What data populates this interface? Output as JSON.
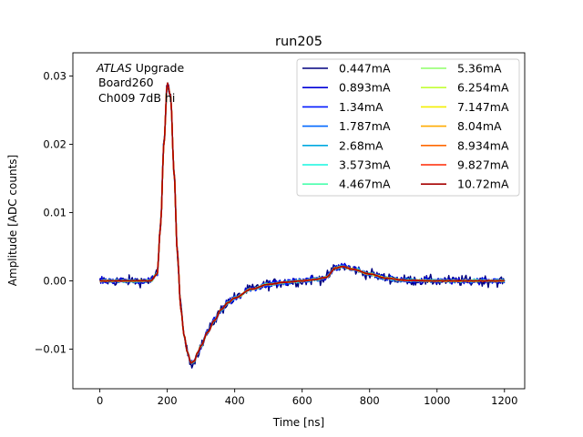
{
  "chart_data": {
    "type": "line",
    "title": "run205",
    "xlabel": "Time [ns]",
    "ylabel": "Amplitude [ADC counts]",
    "xlim": [
      -80,
      1260
    ],
    "ylim": [
      -0.0158,
      0.0334
    ],
    "x_ticks": [
      0,
      200,
      400,
      600,
      800,
      1000,
      1200
    ],
    "y_ticks": [
      -0.01,
      0.0,
      0.01,
      0.02,
      0.03
    ],
    "x_tick_labels": [
      "0",
      "200",
      "400",
      "600",
      "800",
      "1000",
      "1200"
    ],
    "y_tick_labels": [
      "−0.01",
      "0.00",
      "0.01",
      "0.02",
      "0.03"
    ],
    "grid": false,
    "legend_placement": "top-right",
    "legend_columns": 2,
    "annotation": {
      "italic_part": "ATLAS",
      "line1_rest": " Upgrade",
      "line2": "Board260",
      "line3": "Ch009 7dB hi"
    },
    "pulse_shape": {
      "x": [
        0,
        150,
        170,
        180,
        190,
        200,
        210,
        220,
        230,
        240,
        250,
        260,
        270,
        280,
        290,
        300,
        320,
        340,
        360,
        380,
        400,
        450,
        500,
        550,
        600,
        640,
        670,
        700,
        720,
        750,
        800,
        850,
        900,
        1000,
        1100,
        1200
      ],
      "y": [
        0.0,
        0.0,
        0.001,
        0.008,
        0.02,
        0.029,
        0.027,
        0.016,
        0.004,
        -0.004,
        -0.008,
        -0.0105,
        -0.012,
        -0.0118,
        -0.0105,
        -0.0095,
        -0.0075,
        -0.0058,
        -0.0042,
        -0.0032,
        -0.0025,
        -0.0012,
        -0.0005,
        -0.0002,
        0.0,
        0.0002,
        0.0005,
        0.0019,
        0.0021,
        0.0017,
        0.001,
        0.0004,
        0.0001,
        0.0,
        0.0,
        0.0
      ]
    },
    "series": [
      {
        "name": "0.447mA",
        "color": "#00007f",
        "scale": 1.0,
        "noise": 0.00055
      },
      {
        "name": "0.893mA",
        "color": "#0000d8",
        "scale": 1.0,
        "noise": 0.00035
      },
      {
        "name": "1.34mA",
        "color": "#0019ff",
        "scale": 1.0,
        "noise": 0.00025
      },
      {
        "name": "1.787mA",
        "color": "#0068ff",
        "scale": 1.0,
        "noise": 0.0002
      },
      {
        "name": "2.68mA",
        "color": "#00a9e0",
        "scale": 1.0,
        "noise": 0.00015
      },
      {
        "name": "3.573mA",
        "color": "#15f5e1",
        "scale": 1.0,
        "noise": 0.00012
      },
      {
        "name": "4.467mA",
        "color": "#4affad",
        "scale": 1.0,
        "noise": 0.0001
      },
      {
        "name": "5.36mA",
        "color": "#8eff68",
        "scale": 1.0,
        "noise": 9e-05
      },
      {
        "name": "6.254mA",
        "color": "#c2ff35",
        "scale": 1.0,
        "noise": 8e-05
      },
      {
        "name": "7.147mA",
        "color": "#f3ef00",
        "scale": 1.0,
        "noise": 7e-05
      },
      {
        "name": "8.04mA",
        "color": "#ffab00",
        "scale": 1.0,
        "noise": 6e-05
      },
      {
        "name": "8.934mA",
        "color": "#ff6800",
        "scale": 1.0,
        "noise": 5e-05
      },
      {
        "name": "9.827mA",
        "color": "#ff2600",
        "scale": 1.0,
        "noise": 4e-05
      },
      {
        "name": "10.72mA",
        "color": "#a60000",
        "scale": 1.0,
        "noise": 3e-05
      }
    ]
  }
}
